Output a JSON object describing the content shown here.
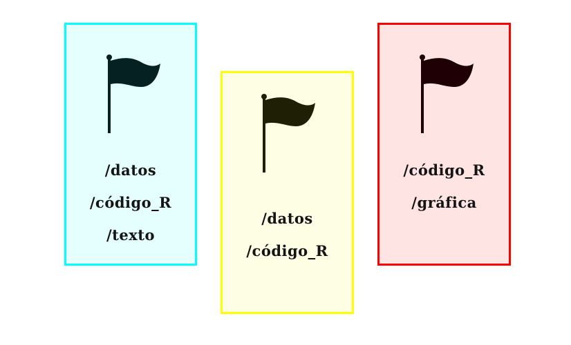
{
  "cards": [
    {
      "border_color": "#00ffff",
      "background": "#e5fefe",
      "flag_color": "#062121",
      "icon": "flag-icon",
      "labels": [
        "/datos",
        "/código_R",
        "/texto"
      ]
    },
    {
      "border_color": "#ffff00",
      "background": "#fefee5",
      "flag_color": "#1f1f06",
      "icon": "flag-icon",
      "labels": [
        "/datos",
        "/código_R"
      ]
    },
    {
      "border_color": "#ff0000",
      "background": "#ffe4e4",
      "flag_color": "#1f0005",
      "icon": "flag-icon",
      "labels": [
        "/código_R",
        "/gráfica"
      ]
    }
  ]
}
